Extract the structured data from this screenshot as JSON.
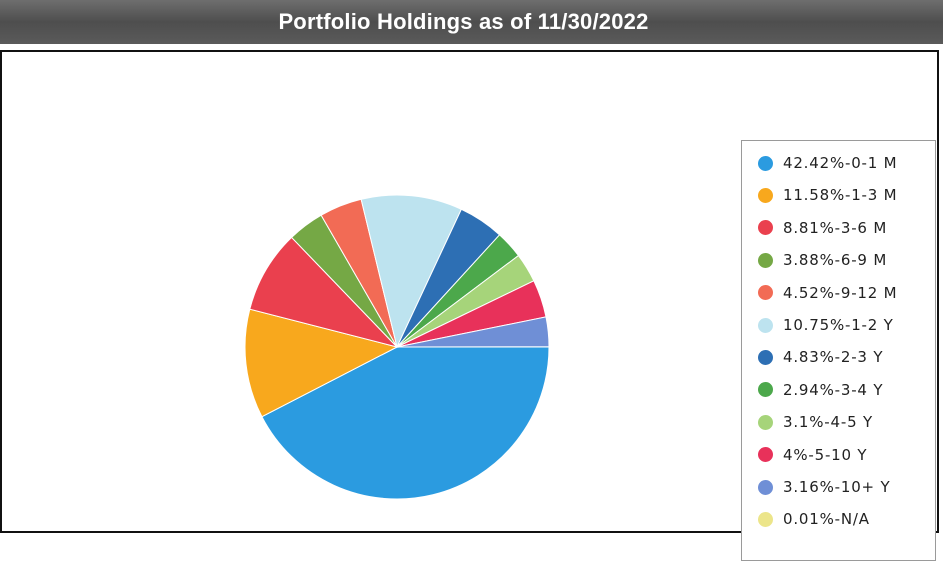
{
  "header": {
    "title": "Portfolio Holdings as of 11/30/2022"
  },
  "chart_data": {
    "type": "pie",
    "title": "Portfolio Holdings as of 11/30/2022",
    "legend_position": "right",
    "slices": [
      {
        "label": "42.42%-0-1 M",
        "value": 42.42,
        "color": "#2b9be0"
      },
      {
        "label": "11.58%-1-3 M",
        "value": 11.58,
        "color": "#f8a81d"
      },
      {
        "label": "8.81%-3-6 M",
        "value": 8.81,
        "color": "#ea404e"
      },
      {
        "label": "3.88%-6-9 M",
        "value": 3.88,
        "color": "#75a845"
      },
      {
        "label": "4.52%-9-12 M",
        "value": 4.52,
        "color": "#f26b55"
      },
      {
        "label": "10.75%-1-2 Y",
        "value": 10.75,
        "color": "#bde3ef"
      },
      {
        "label": "4.83%-2-3 Y",
        "value": 4.83,
        "color": "#2d6fb4"
      },
      {
        "label": "2.94%-3-4 Y",
        "value": 2.94,
        "color": "#4ca84b"
      },
      {
        "label": "3.1%-4-5 Y",
        "value": 3.1,
        "color": "#a6d47a"
      },
      {
        "label": "4%-5-10 Y",
        "value": 4,
        "color": "#e8315a"
      },
      {
        "label": "3.16%-10+ Y",
        "value": 3.16,
        "color": "#6f8fd6"
      },
      {
        "label": "0.01%-N/A",
        "value": 0.01,
        "color": "#ece58a"
      }
    ]
  }
}
